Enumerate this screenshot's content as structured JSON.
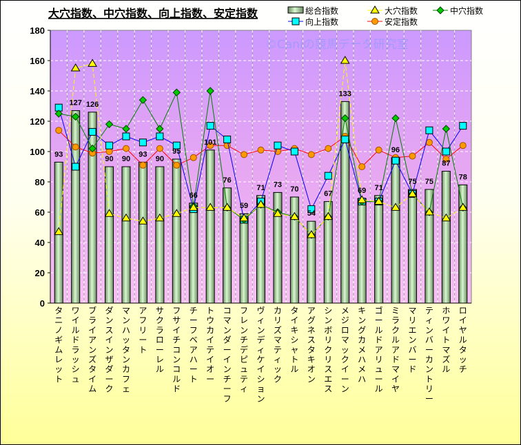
{
  "chart_data": {
    "type": "bar+line",
    "title": "大穴指数、中穴指数、向上指数、安定指数",
    "watermark": "©Caniの競馬データ研究室",
    "ylim": [
      0,
      180
    ],
    "yticks": [
      0,
      20,
      40,
      60,
      80,
      100,
      120,
      140,
      160,
      180
    ],
    "grid": true,
    "legend_position": "top-right",
    "categories": [
      "タニノギムレット",
      "ワイルドラッシュ",
      "ブライアンズタイム",
      "ダンスインザダーク",
      "マンハッタンカフェ",
      "アフリート",
      "サクラローレル",
      "フサイチコンコルド",
      "チーフベアハート",
      "トウカイテイオー",
      "コマンダーインチーフ",
      "フレンチデピュティ",
      "ヴィンディケイション",
      "カリズマティック",
      "タイキシャトル",
      "アグネスタキオン",
      "シンボリクリスエス",
      "メジロマックイーン",
      "キングカメハメハ",
      "ゴールドアリュール",
      "ミラクルアドマイヤ",
      "マリエンバード",
      "ティンバーカントリー",
      "ホワイトマズル",
      "ロイヤルタッチ"
    ],
    "series": [
      {
        "name": "総合指数",
        "kind": "bar",
        "color": "#b8e8b0",
        "values": [
          93,
          127,
          126,
          90,
          90,
          93,
          90,
          95,
          66,
          101,
          76,
          59,
          71,
          73,
          70,
          54,
          67,
          133,
          69,
          71,
          96,
          75,
          75,
          87,
          78
        ]
      },
      {
        "name": "大穴指数",
        "kind": "line",
        "marker": "triangle",
        "color": "#ffff00",
        "values": [
          47,
          155,
          158,
          59,
          56,
          54,
          56,
          59,
          63,
          63,
          63,
          56,
          65,
          59,
          57,
          45,
          57,
          160,
          68,
          67,
          63,
          72,
          60,
          56,
          63
        ]
      },
      {
        "name": "中穴指数",
        "kind": "line",
        "marker": "diamond",
        "color": "#00cc00",
        "line": "#008000",
        "values": [
          125,
          123,
          102,
          118,
          115,
          134,
          115,
          139,
          64,
          140,
          63,
          55,
          65,
          60,
          57,
          45,
          57,
          122,
          67,
          67,
          122,
          72,
          60,
          115,
          63
        ]
      },
      {
        "name": "向上指数",
        "kind": "line",
        "marker": "square",
        "color": "#00ffff",
        "line": "#0000ff",
        "values": [
          129,
          90,
          113,
          104,
          110,
          106,
          110,
          104,
          62,
          117,
          108,
          55,
          67,
          104,
          100,
          62,
          84,
          108,
          67,
          67,
          94,
          72,
          114,
          100,
          117
        ]
      },
      {
        "name": "安定指数",
        "kind": "line",
        "marker": "circle",
        "color": "#ff9900",
        "line": "#ff0000",
        "values": [
          114,
          103,
          99,
          100,
          102,
          91,
          102,
          91,
          96,
          104,
          104,
          98,
          101,
          100,
          102,
          98,
          102,
          110,
          90,
          101,
          96,
          97,
          106,
          95,
          104
        ]
      }
    ]
  }
}
